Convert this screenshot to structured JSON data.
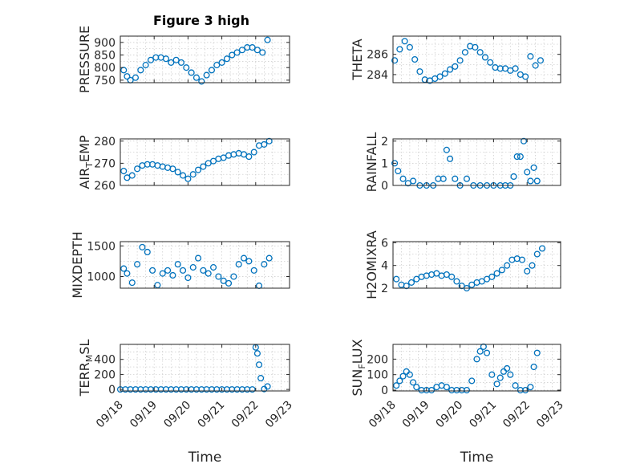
{
  "figure": {
    "title": "Figure 3 high"
  },
  "xlabel": "Time",
  "colors": {
    "marker": "#0072BD",
    "axis": "#262626",
    "grid": "#c8c8c8"
  },
  "x_ticks": [
    "09/18",
    "09/19",
    "09/20",
    "09/21",
    "09/22",
    "09/23"
  ],
  "x_range_days": [
    0,
    5
  ],
  "chart_data": [
    {
      "id": "pressure",
      "type": "scatter",
      "ylabel": "PRESSURE",
      "ylim": [
        740,
        925
      ],
      "yticks": [
        750,
        800,
        850,
        900
      ],
      "x": [
        0.1,
        0.2,
        0.3,
        0.45,
        0.6,
        0.75,
        0.9,
        1.05,
        1.2,
        1.35,
        1.5,
        1.65,
        1.8,
        1.95,
        2.1,
        2.25,
        2.4,
        2.55,
        2.7,
        2.85,
        3.0,
        3.15,
        3.3,
        3.45,
        3.6,
        3.75,
        3.9,
        4.05,
        4.2,
        4.35
      ],
      "y": [
        790,
        765,
        750,
        760,
        790,
        810,
        830,
        840,
        840,
        835,
        820,
        830,
        820,
        800,
        780,
        760,
        745,
        770,
        790,
        810,
        820,
        835,
        850,
        860,
        870,
        880,
        880,
        870,
        860,
        910
      ]
    },
    {
      "id": "theta",
      "type": "scatter",
      "ylabel": "THETA",
      "ylim": [
        283.2,
        287.8
      ],
      "yticks": [
        284,
        286
      ],
      "x": [
        0.05,
        0.2,
        0.35,
        0.5,
        0.65,
        0.8,
        0.95,
        1.1,
        1.25,
        1.4,
        1.55,
        1.7,
        1.85,
        2.0,
        2.15,
        2.3,
        2.45,
        2.6,
        2.75,
        2.9,
        3.05,
        3.2,
        3.35,
        3.5,
        3.65,
        3.8,
        3.95,
        4.1,
        4.25,
        4.4
      ],
      "y": [
        285.4,
        286.5,
        287.3,
        286.7,
        285.5,
        284.3,
        283.5,
        283.4,
        283.6,
        283.8,
        284.1,
        284.5,
        284.8,
        285.4,
        286.2,
        286.8,
        286.7,
        286.2,
        285.7,
        285.2,
        284.7,
        284.6,
        284.6,
        284.4,
        284.6,
        284.0,
        283.8,
        285.8,
        284.9,
        285.4
      ]
    },
    {
      "id": "air_temp",
      "type": "scatter",
      "ylabel_main": "AIR",
      "ylabel_sub": "T",
      "ylabel_rest": "EMP",
      "ylim": [
        260,
        281
      ],
      "yticks": [
        260,
        270,
        280
      ],
      "x": [
        0.1,
        0.2,
        0.35,
        0.5,
        0.65,
        0.8,
        0.95,
        1.1,
        1.25,
        1.4,
        1.55,
        1.7,
        1.85,
        2.0,
        2.15,
        2.3,
        2.45,
        2.6,
        2.75,
        2.9,
        3.05,
        3.2,
        3.35,
        3.5,
        3.65,
        3.8,
        3.95,
        4.1,
        4.25,
        4.4
      ],
      "y": [
        266.5,
        263.5,
        264.5,
        267.5,
        269.0,
        269.5,
        269.5,
        269.0,
        268.5,
        268.0,
        267.5,
        266.0,
        264.5,
        263.0,
        265.0,
        267.0,
        268.5,
        270.0,
        271.0,
        272.0,
        272.5,
        273.5,
        274.0,
        274.5,
        274.0,
        273.0,
        275.0,
        278.0,
        278.5,
        280.0
      ]
    },
    {
      "id": "rainfall",
      "type": "scatter",
      "ylabel": "RAINFALL",
      "ylim": [
        0,
        2.1
      ],
      "yticks": [
        0,
        1,
        2
      ],
      "x": [
        0.05,
        0.15,
        0.3,
        0.45,
        0.6,
        0.8,
        1.0,
        1.2,
        1.35,
        1.5,
        1.6,
        1.7,
        1.85,
        2.0,
        2.2,
        2.4,
        2.6,
        2.8,
        3.0,
        3.2,
        3.35,
        3.5,
        3.6,
        3.7,
        3.8,
        3.9,
        4.0,
        4.1,
        4.2,
        4.3
      ],
      "y": [
        1.0,
        0.65,
        0.3,
        0.1,
        0.2,
        0.0,
        0.0,
        0.0,
        0.3,
        0.3,
        1.6,
        1.2,
        0.3,
        0.0,
        0.3,
        0.0,
        0.0,
        0.0,
        0.0,
        0.0,
        0.0,
        0.0,
        0.4,
        1.3,
        1.3,
        2.0,
        0.6,
        0.2,
        0.8,
        0.2
      ]
    },
    {
      "id": "mixdepth",
      "type": "scatter",
      "ylabel": "MIXDEPTH",
      "ylim": [
        810,
        1570
      ],
      "yticks": [
        1000,
        1500
      ],
      "x": [
        0.1,
        0.2,
        0.35,
        0.5,
        0.65,
        0.8,
        0.95,
        1.1,
        1.25,
        1.4,
        1.55,
        1.7,
        1.85,
        2.0,
        2.15,
        2.3,
        2.45,
        2.6,
        2.75,
        2.9,
        3.05,
        3.2,
        3.35,
        3.5,
        3.65,
        3.8,
        3.95,
        4.1,
        4.25,
        4.4
      ],
      "y": [
        1130,
        1050,
        900,
        1200,
        1480,
        1400,
        1100,
        860,
        1050,
        1100,
        1020,
        1200,
        1100,
        980,
        1150,
        1300,
        1100,
        1050,
        1150,
        1000,
        930,
        890,
        1000,
        1200,
        1300,
        1250,
        1100,
        850,
        1200,
        1300
      ]
    },
    {
      "id": "h2omixra",
      "type": "scatter",
      "ylabel": "H2OMIXRA",
      "ylim": [
        2,
        6.1
      ],
      "yticks": [
        2,
        4,
        6
      ],
      "x": [
        0.1,
        0.25,
        0.4,
        0.55,
        0.7,
        0.85,
        1.0,
        1.15,
        1.3,
        1.45,
        1.6,
        1.75,
        1.9,
        2.05,
        2.2,
        2.35,
        2.5,
        2.65,
        2.8,
        2.95,
        3.1,
        3.25,
        3.4,
        3.55,
        3.7,
        3.85,
        4.0,
        4.15,
        4.3,
        4.45
      ],
      "y": [
        2.8,
        2.3,
        2.2,
        2.5,
        2.8,
        3.0,
        3.1,
        3.2,
        3.3,
        3.1,
        3.2,
        3.0,
        2.6,
        2.2,
        2.0,
        2.3,
        2.5,
        2.6,
        2.8,
        3.0,
        3.3,
        3.6,
        4.0,
        4.5,
        4.6,
        4.5,
        3.5,
        4.0,
        5.0,
        5.5
      ]
    },
    {
      "id": "terr_msl",
      "type": "scatter",
      "ylabel_main": "TERR",
      "ylabel_sub": "M",
      "ylabel_rest": "SL",
      "ylim": [
        -20,
        600
      ],
      "yticks": [
        0,
        200,
        400
      ],
      "x": [
        0.0,
        0.15,
        0.3,
        0.45,
        0.6,
        0.75,
        0.9,
        1.05,
        1.2,
        1.35,
        1.5,
        1.65,
        1.8,
        1.95,
        2.1,
        2.25,
        2.4,
        2.55,
        2.7,
        2.85,
        3.0,
        3.15,
        3.3,
        3.45,
        3.6,
        3.75,
        3.9,
        4.0,
        4.05,
        4.1,
        4.15,
        4.25,
        4.35
      ],
      "y": [
        0,
        0,
        0,
        0,
        0,
        0,
        0,
        0,
        0,
        0,
        0,
        0,
        0,
        0,
        0,
        0,
        0,
        0,
        0,
        0,
        0,
        0,
        0,
        0,
        0,
        0,
        0,
        560,
        480,
        330,
        150,
        5,
        40
      ]
    },
    {
      "id": "sun_flux",
      "type": "scatter",
      "ylabel_main": "SUN",
      "ylabel_sub": "F",
      "ylabel_rest": "LUX",
      "ylim": [
        -5,
        295
      ],
      "yticks": [
        0,
        100,
        200
      ],
      "x": [
        0.1,
        0.2,
        0.3,
        0.4,
        0.5,
        0.6,
        0.7,
        0.85,
        1.0,
        1.15,
        1.3,
        1.45,
        1.6,
        1.75,
        1.9,
        2.05,
        2.2,
        2.35,
        2.5,
        2.6,
        2.7,
        2.8,
        2.95,
        3.1,
        3.2,
        3.3,
        3.4,
        3.5,
        3.65,
        3.8,
        3.95,
        4.1,
        4.2,
        4.3
      ],
      "y": [
        30,
        60,
        90,
        120,
        100,
        50,
        20,
        0,
        0,
        0,
        20,
        30,
        20,
        0,
        0,
        0,
        0,
        60,
        200,
        250,
        280,
        240,
        100,
        40,
        80,
        120,
        140,
        100,
        30,
        0,
        0,
        20,
        150,
        240
      ]
    }
  ]
}
